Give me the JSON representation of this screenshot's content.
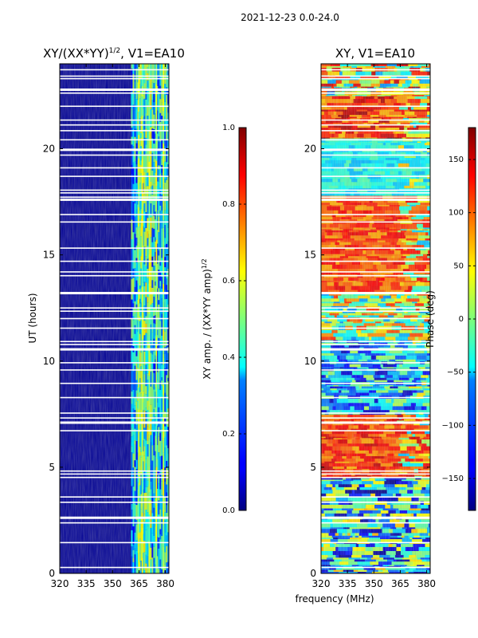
{
  "suptitle": "2021-12-23 0.0-24.0",
  "chart_data": [
    {
      "type": "heatmap",
      "title_main": "XY/(XX*YY)",
      "title_exp": "1/2",
      "title_tail": ", V1=EA10",
      "ylabel": "UT (hours)",
      "xlim": [
        320,
        382
      ],
      "ylim": [
        0,
        24
      ],
      "xticks": [
        320,
        335,
        350,
        365,
        380
      ],
      "yticks": [
        0,
        5,
        10,
        15,
        20
      ],
      "colorbar": {
        "label_main": "XY amp. / (XX*YY amp)",
        "label_exp": "1/2",
        "range": [
          0.0,
          1.0
        ],
        "ticks": [
          "0.0",
          "0.2",
          "0.4",
          "0.6",
          "0.8",
          "1.0"
        ],
        "tick_values": [
          0.0,
          0.2,
          0.4,
          0.6,
          0.8,
          1.0
        ]
      },
      "gaps_hours": [
        0.28,
        1.45,
        2.38,
        2.62,
        3.35,
        3.6,
        4.52,
        4.68,
        4.82,
        6.72,
        7.1,
        7.32,
        7.55,
        8.28,
        8.95,
        9.58,
        9.92,
        10.55,
        10.78,
        10.92,
        11.55,
        12.0,
        12.35,
        12.5,
        13.2,
        14.02,
        14.2,
        14.7,
        15.32,
        16.55,
        16.9,
        17.6,
        17.72,
        17.92,
        18.05,
        18.7,
        19.1,
        19.7,
        19.95,
        20.42,
        20.85,
        21.12,
        21.35,
        22.0,
        22.62,
        22.78,
        23.3,
        23.42,
        23.72
      ]
    },
    {
      "type": "heatmap",
      "title_main": "XY, V1=EA10",
      "xlim": [
        320,
        382
      ],
      "ylim": [
        0,
        24
      ],
      "xticks": [
        320,
        335,
        350,
        365,
        380
      ],
      "yticks": [
        0,
        5,
        10,
        15,
        20
      ],
      "xlabel": "frequency (MHz)",
      "colorbar": {
        "label_main": "Phase (deg)",
        "range": [
          -180,
          180
        ],
        "ticks": [
          "−150",
          "−100",
          "−50",
          "0",
          "50",
          "100",
          "150"
        ],
        "tick_values": [
          -150,
          -100,
          -50,
          0,
          50,
          100,
          150
        ]
      },
      "gaps_hours": [
        0.28,
        1.45,
        2.38,
        2.62,
        3.35,
        3.6,
        4.52,
        4.68,
        4.82,
        6.72,
        7.1,
        7.32,
        7.55,
        8.28,
        8.95,
        9.58,
        9.92,
        10.55,
        10.78,
        10.92,
        11.55,
        12.0,
        12.35,
        12.5,
        13.2,
        14.02,
        14.2,
        14.7,
        15.32,
        16.55,
        16.9,
        17.6,
        17.72,
        17.92,
        18.05,
        18.7,
        19.1,
        19.7,
        19.95,
        20.42,
        20.85,
        21.12,
        21.35,
        22.0,
        22.62,
        22.78,
        23.3,
        23.42,
        23.72
      ]
    }
  ]
}
